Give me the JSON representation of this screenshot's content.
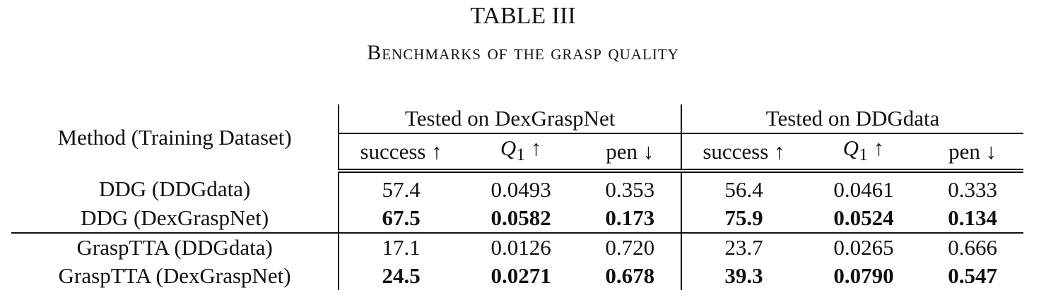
{
  "table_number": "TABLE III",
  "table_title": "Benchmarks of the grasp quality",
  "header": {
    "method_col": "Method (Training Dataset)",
    "group1": "Tested on DexGraspNet",
    "group2": "Tested on DDGdata",
    "success": "success ↑",
    "q1_var": "Q",
    "q1_sub": "1",
    "q1_arrow": " ↑",
    "pen": "pen ↓"
  },
  "rows": [
    {
      "method": "DDG (DDGdata)",
      "d_success": "57.4",
      "d_q1": "0.0493",
      "d_pen": "0.353",
      "g_success": "56.4",
      "g_q1": "0.0461",
      "g_pen": "0.333",
      "bold": false
    },
    {
      "method": "DDG (DexGraspNet)",
      "d_success": "67.5",
      "d_q1": "0.0582",
      "d_pen": "0.173",
      "g_success": "75.9",
      "g_q1": "0.0524",
      "g_pen": "0.134",
      "bold": true
    },
    {
      "method": "GraspTTA (DDGdata)",
      "d_success": "17.1",
      "d_q1": "0.0126",
      "d_pen": "0.720",
      "g_success": "23.7",
      "g_q1": "0.0265",
      "g_pen": "0.666",
      "bold": false
    },
    {
      "method": "GraspTTA (DexGraspNet)",
      "d_success": "24.5",
      "d_q1": "0.0271",
      "d_pen": "0.678",
      "g_success": "39.3",
      "g_q1": "0.0790",
      "g_pen": "0.547",
      "bold": true
    }
  ]
}
